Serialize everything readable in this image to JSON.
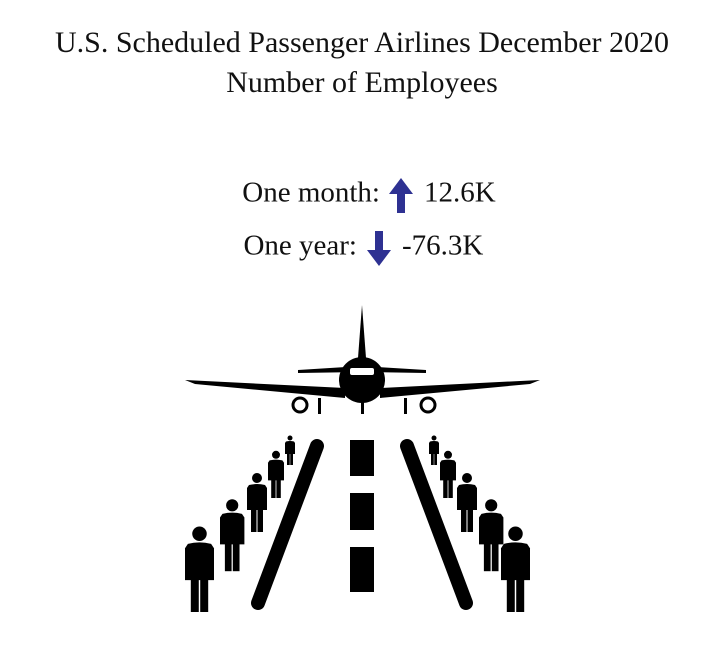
{
  "title": [
    "U.S. Scheduled Passenger Airlines December 2020",
    "Number of Employees"
  ],
  "stats": [
    {
      "label": "One month:",
      "value": "12.6K"
    },
    {
      "label": "One year:",
      "value": "-76.3K"
    }
  ]
}
